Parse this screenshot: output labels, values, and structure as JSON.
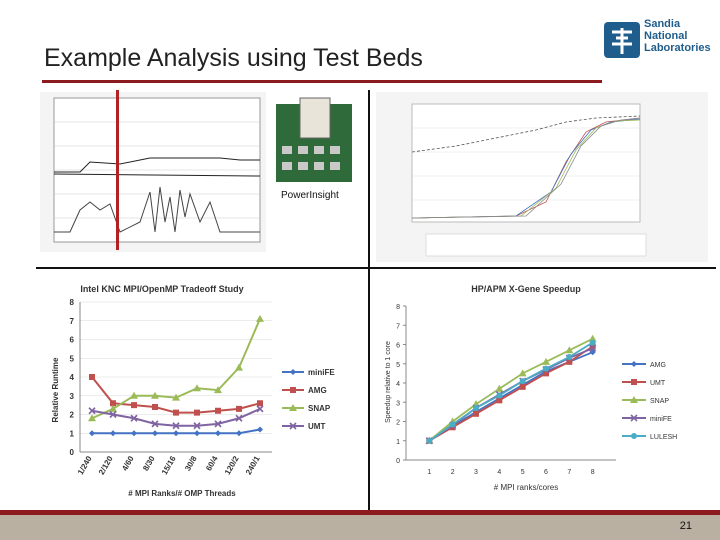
{
  "slide": {
    "title": "Example Analysis using Test Beds",
    "logo_text": [
      "Sandia",
      "National",
      "Laboratories"
    ],
    "device_label": "PowerInsight",
    "page_number": "21"
  },
  "colors": {
    "accent_red": "#8b1b1f",
    "sandia_blue": "#1f5d8c",
    "footer": "#b9b0a2"
  },
  "chart_data": [
    {
      "type": "line",
      "title": "Intel KNC MPI/OpenMP Tradeoff Study",
      "xlabel": "# MPI Ranks/# OMP Threads",
      "ylabel": "Relative Runtime",
      "categories": [
        "1/240",
        "2/120",
        "4/60",
        "8/30",
        "15/16",
        "30/8",
        "60/4",
        "120/2",
        "240/1"
      ],
      "ylim": [
        0,
        8
      ],
      "yticks": [
        0,
        1,
        2,
        3,
        4,
        5,
        6,
        7,
        8
      ],
      "legend": "right",
      "grid": true,
      "series": [
        {
          "name": "miniFE",
          "color": "#4472c4",
          "marker": "diamond",
          "values": [
            1,
            1,
            1,
            1,
            1,
            1,
            1,
            1,
            1.2
          ]
        },
        {
          "name": "AMG",
          "color": "#c0504d",
          "marker": "square",
          "values": [
            4,
            2.6,
            2.5,
            2.4,
            2.1,
            2.1,
            2.2,
            2.3,
            2.6
          ]
        },
        {
          "name": "SNAP",
          "color": "#9bbb59",
          "marker": "triangle",
          "values": [
            1.8,
            2.3,
            3.0,
            3.0,
            2.9,
            3.4,
            3.3,
            4.5,
            7.1
          ]
        },
        {
          "name": "UMT",
          "color": "#8064a2",
          "marker": "x",
          "values": [
            2.2,
            2.0,
            1.8,
            1.5,
            1.4,
            1.4,
            1.5,
            1.8,
            2.3
          ]
        }
      ]
    },
    {
      "type": "line",
      "title": "HP/APM X-Gene Speedup",
      "xlabel": "# MPI ranks/cores",
      "ylabel": "Speedup relative to 1 core",
      "x": [
        1,
        2,
        3,
        4,
        5,
        6,
        7,
        8
      ],
      "ylim": [
        0,
        8
      ],
      "xlim": [
        0,
        9
      ],
      "yticks": [
        0,
        1,
        2,
        3,
        4,
        5,
        6,
        7,
        8
      ],
      "legend": "right",
      "grid": false,
      "series": [
        {
          "name": "AMG",
          "color": "#4472c4",
          "marker": "diamond",
          "values": [
            1,
            1.75,
            2.5,
            3.2,
            3.9,
            4.6,
            5.1,
            5.6
          ]
        },
        {
          "name": "UMT",
          "color": "#c0504d",
          "marker": "square",
          "values": [
            1,
            1.7,
            2.4,
            3.1,
            3.8,
            4.5,
            5.1,
            5.9
          ]
        },
        {
          "name": "SNAP",
          "color": "#9bbb59",
          "marker": "triangle",
          "values": [
            1,
            2.0,
            2.9,
            3.7,
            4.5,
            5.1,
            5.7,
            6.3
          ]
        },
        {
          "name": "miniFE",
          "color": "#8064a2",
          "marker": "x",
          "values": [
            1,
            1.8,
            2.7,
            3.4,
            4.1,
            4.7,
            5.3,
            5.8
          ]
        },
        {
          "name": "LULESH",
          "color": "#4bacc6",
          "marker": "star",
          "values": [
            1,
            1.85,
            2.7,
            3.35,
            4.1,
            4.75,
            5.35,
            6.1
          ]
        }
      ]
    }
  ]
}
